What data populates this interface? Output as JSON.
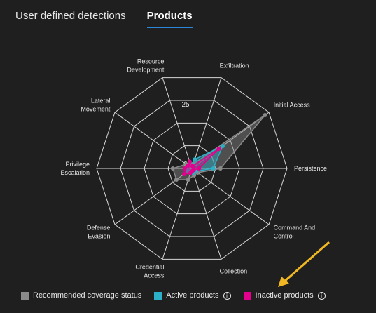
{
  "tabs": [
    {
      "label": "User defined detections",
      "active": false
    },
    {
      "label": "Products",
      "active": true
    }
  ],
  "legend": {
    "recommended": {
      "label": "Recommended coverage status",
      "color": "#8a8a8a"
    },
    "active": {
      "label": "Active products",
      "color": "#2bb0c8"
    },
    "inactive": {
      "label": "Inactive products",
      "color": "#e3008c"
    },
    "info_icon": "info-icon"
  },
  "chart_data": {
    "type": "radar",
    "axes": [
      [
        "Exfiltration"
      ],
      [
        "Initial Access"
      ],
      [
        "Persistence"
      ],
      [
        "Command And",
        "Control"
      ],
      [
        "Collection"
      ],
      [
        "Credential",
        "Access"
      ],
      [
        "Defense",
        "Evasion"
      ],
      [
        "Privilege",
        "Escalation"
      ],
      [
        "Lateral",
        "Movement"
      ],
      [
        "Resource",
        "Development"
      ]
    ],
    "ticks": [
      {
        "value": 0,
        "label": "0"
      },
      {
        "value": 25,
        "label": "25"
      }
    ],
    "rmax": 40,
    "series": [
      {
        "name": "Recommended coverage status",
        "color": "#8a8a8a",
        "values": [
          2,
          38,
          12,
          3,
          3,
          5,
          8,
          8,
          3,
          2
        ]
      },
      {
        "name": "Active products",
        "color": "#2bb0c8",
        "values": [
          4,
          16,
          9,
          2,
          2,
          2,
          2,
          3,
          2,
          1
        ]
      },
      {
        "name": "Inactive products",
        "color": "#e3008c",
        "values": [
          1,
          14,
          3,
          1,
          1,
          2,
          4,
          3,
          2,
          3
        ]
      }
    ]
  }
}
